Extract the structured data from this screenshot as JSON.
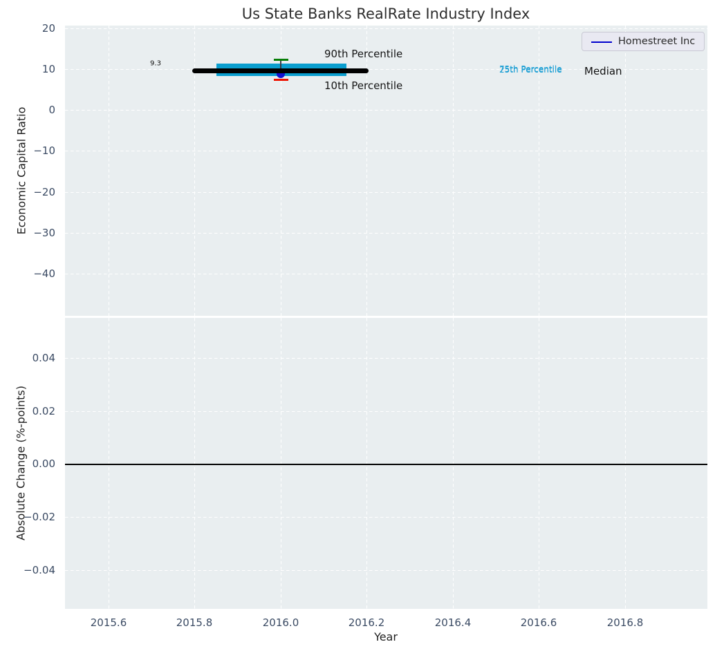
{
  "title": "Us State Banks RealRate Industry Index",
  "legend": {
    "label": "Homestreet Inc",
    "line_color": "#0000cd"
  },
  "colors": {
    "panel_background": "#e9eef0",
    "grid": "#ffffff",
    "iqr_box": "#0a9ecf",
    "median_line": "#000000",
    "p90_cap": "#067d06",
    "p10_cap": "#ee1100",
    "company_dot": "#1212d0",
    "percentile_text": "#1d9fd4",
    "tick_text": "#3a4a63"
  },
  "top_axis": {
    "ylabel": "Economic Capital Ratio",
    "ytick_labels": [
      "20",
      "10",
      "0",
      "−10",
      "−20",
      "−30",
      "−40"
    ],
    "annotations": {
      "median_value": "9.3",
      "p90": "90th Percentile",
      "p10": "10th Percentile",
      "p75": "75th Percentile",
      "p25": "25th Percentile",
      "median": "Median"
    }
  },
  "bottom_axis": {
    "ylabel": "Absolute Change (%-points)",
    "ytick_labels": [
      "0.04",
      "0.02",
      "0.00",
      "−0.02",
      "−0.04"
    ]
  },
  "x_axis": {
    "label": "Year",
    "tick_labels": [
      "2015.6",
      "2015.8",
      "2016.0",
      "2016.2",
      "2016.4",
      "2016.6",
      "2016.8"
    ]
  },
  "chart_data": [
    {
      "type": "scatter",
      "title": "Us State Banks RealRate Industry Index",
      "xlabel": "Year",
      "ylabel": "Economic Capital Ratio",
      "xlim": [
        2015.5,
        2017.0
      ],
      "ylim": [
        -49,
        20.5
      ],
      "xticks": [
        2015.6,
        2015.8,
        2016.0,
        2016.2,
        2016.4,
        2016.6,
        2016.8
      ],
      "yticks": [
        20,
        10,
        0,
        -10,
        -20,
        -30,
        -40
      ],
      "grid": true,
      "legend_position": "upper right",
      "series": [
        {
          "name": "Homestreet Inc",
          "x": [
            2016.0
          ],
          "y": [
            8.9
          ],
          "marker": "dot",
          "color": "#1212d0"
        }
      ],
      "industry_percentiles": {
        "year": 2016.0,
        "median": 9.3,
        "median_x_span": [
          2015.8,
          2016.2
        ],
        "p25": 8.3,
        "p75": 11.3,
        "iqr_x_span": [
          2015.85,
          2016.15
        ],
        "p10": 7.5,
        "p90": 12.2
      },
      "annotations": [
        {
          "text": "9.3",
          "x": 2015.73,
          "y": 9.3
        },
        {
          "text": "90th Percentile",
          "x": 2016.1,
          "y": 13.7
        },
        {
          "text": "10th Percentile",
          "x": 2016.1,
          "y": 6.0
        },
        {
          "text": "75th Percentile",
          "x": 2016.51,
          "y": 10.0
        },
        {
          "text": "25th Percentile",
          "x": 2016.51,
          "y": 9.8
        },
        {
          "text": "Median",
          "x": 2016.71,
          "y": 9.6
        }
      ]
    },
    {
      "type": "line",
      "xlabel": "Year",
      "ylabel": "Absolute Change (%-points)",
      "xlim": [
        2015.5,
        2017.0
      ],
      "ylim": [
        -0.055,
        0.055
      ],
      "xticks": [
        2015.6,
        2015.8,
        2016.0,
        2016.2,
        2016.4,
        2016.6,
        2016.8
      ],
      "yticks": [
        0.04,
        0.02,
        0.0,
        -0.02,
        -0.04
      ],
      "grid": true,
      "zero_reference_line": 0.0,
      "series": []
    }
  ]
}
